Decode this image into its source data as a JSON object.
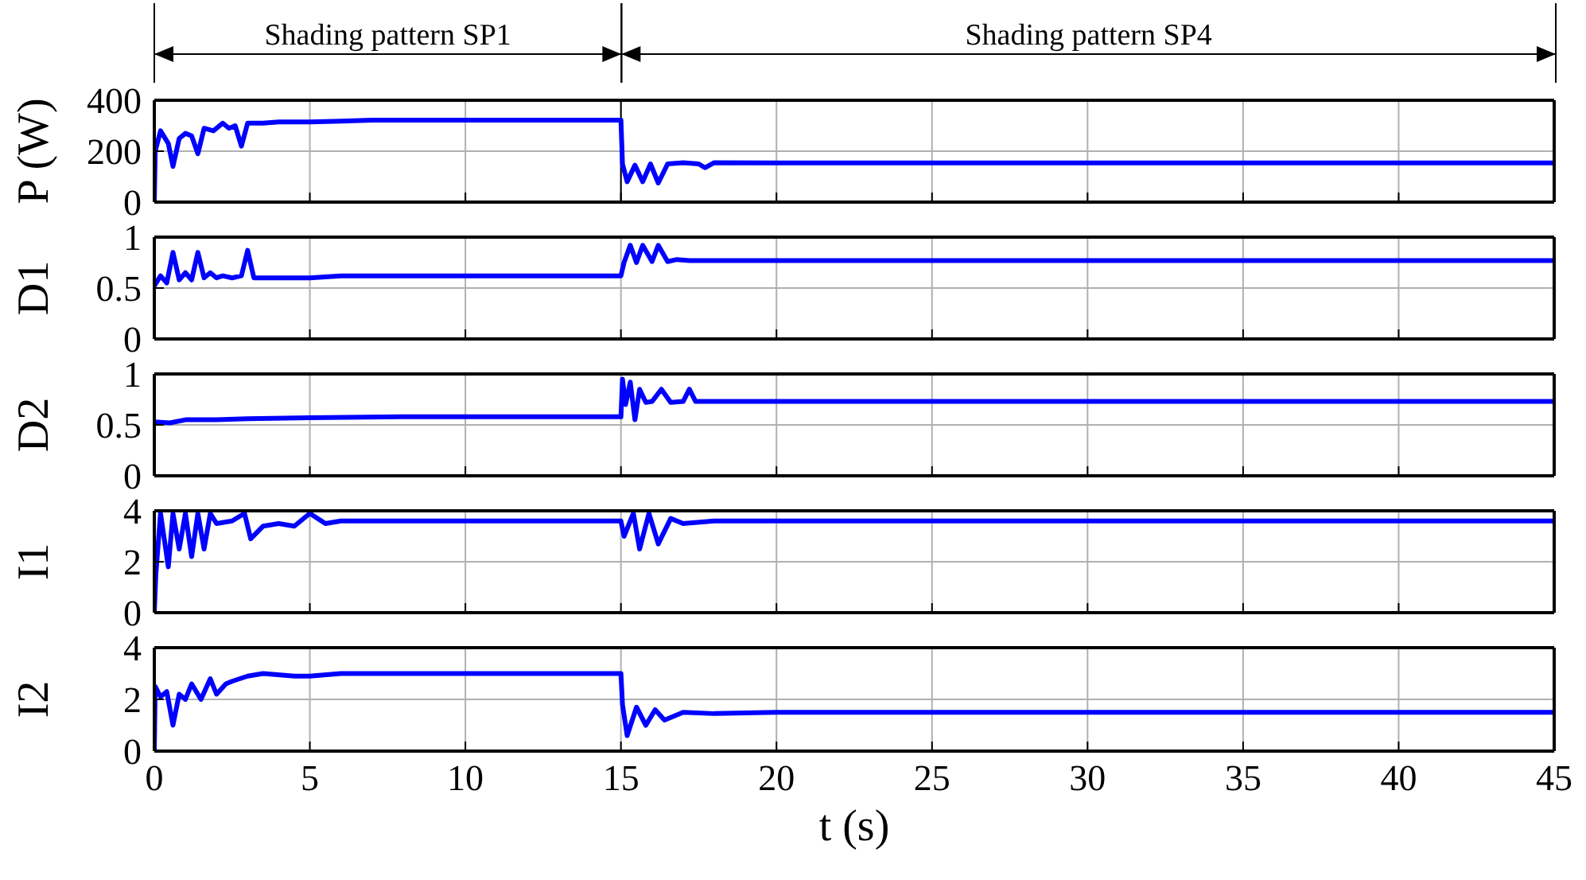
{
  "chart_data": [
    {
      "type": "line",
      "ylabel": "P (W)",
      "xlim": [
        0,
        45
      ],
      "xticks": [
        0,
        5,
        10,
        15,
        20,
        25,
        30,
        35,
        40,
        45
      ],
      "ylim": [
        0,
        400
      ],
      "yticks": [
        0,
        200,
        400
      ],
      "grid": true,
      "tick_labels": "y",
      "line_style": "solid",
      "annotations": [
        "Shading pattern SP1",
        "Shading pattern SP4"
      ],
      "ref_lines": [
        {
          "axis": "x",
          "value": 15
        }
      ],
      "series": [
        {
          "color": "#0000ff",
          "x": [
            0,
            0.03,
            0.2,
            0.45,
            0.6,
            0.8,
            1.0,
            1.2,
            1.4,
            1.6,
            1.9,
            2.2,
            2.4,
            2.6,
            2.8,
            3.0,
            3.5,
            4,
            5,
            6,
            7,
            15,
            15.05,
            15.2,
            15.45,
            15.7,
            15.95,
            16.2,
            16.5,
            17,
            17.5,
            17.7,
            18,
            20,
            45
          ],
          "values": [
            0,
            200,
            280,
            230,
            140,
            250,
            270,
            260,
            190,
            290,
            280,
            310,
            290,
            300,
            220,
            310,
            310,
            315,
            315,
            318,
            322,
            322,
            150,
            80,
            145,
            80,
            150,
            75,
            150,
            155,
            150,
            135,
            155,
            154,
            154
          ]
        }
      ]
    },
    {
      "type": "line",
      "ylabel": "D1",
      "xlim": [
        0,
        45
      ],
      "xticks": [
        0,
        5,
        10,
        15,
        20,
        25,
        30,
        35,
        40,
        45
      ],
      "ylim": [
        0,
        1
      ],
      "yticks": [
        0,
        0.5,
        1
      ],
      "grid": true,
      "tick_labels": "y",
      "line_style": "solid",
      "series": [
        {
          "color": "#0000ff",
          "x": [
            0,
            0.2,
            0.4,
            0.6,
            0.8,
            1.0,
            1.2,
            1.4,
            1.6,
            1.8,
            2.0,
            2.2,
            2.5,
            2.8,
            3.0,
            3.2,
            3.5,
            4,
            5,
            6,
            7,
            15,
            15.1,
            15.3,
            15.5,
            15.7,
            16.0,
            16.2,
            16.5,
            16.8,
            17.2,
            18,
            45
          ],
          "values": [
            0.52,
            0.62,
            0.55,
            0.85,
            0.58,
            0.65,
            0.58,
            0.85,
            0.6,
            0.65,
            0.6,
            0.62,
            0.6,
            0.62,
            0.87,
            0.6,
            0.6,
            0.6,
            0.6,
            0.62,
            0.62,
            0.62,
            0.75,
            0.92,
            0.75,
            0.92,
            0.76,
            0.92,
            0.76,
            0.78,
            0.77,
            0.77,
            0.77
          ]
        }
      ]
    },
    {
      "type": "line",
      "ylabel": "D2",
      "xlim": [
        0,
        45
      ],
      "xticks": [
        0,
        5,
        10,
        15,
        20,
        25,
        30,
        35,
        40,
        45
      ],
      "ylim": [
        0,
        1
      ],
      "yticks": [
        0,
        0.5,
        1
      ],
      "grid": true,
      "tick_labels": "y",
      "line_style": "solid",
      "series": [
        {
          "color": "#0000ff",
          "x": [
            0,
            0.5,
            1,
            2,
            3,
            5,
            8,
            15,
            15.05,
            15.15,
            15.3,
            15.45,
            15.6,
            15.8,
            16.0,
            16.3,
            16.6,
            17.0,
            17.2,
            17.4,
            18,
            45
          ],
          "values": [
            0.53,
            0.52,
            0.55,
            0.55,
            0.56,
            0.57,
            0.58,
            0.58,
            0.95,
            0.7,
            0.92,
            0.55,
            0.85,
            0.72,
            0.73,
            0.85,
            0.72,
            0.73,
            0.85,
            0.73,
            0.73,
            0.73
          ]
        }
      ]
    },
    {
      "type": "line",
      "ylabel": "I1",
      "xlim": [
        0,
        45
      ],
      "xticks": [
        0,
        5,
        10,
        15,
        20,
        25,
        30,
        35,
        40,
        45
      ],
      "ylim": [
        0,
        4
      ],
      "yticks": [
        0,
        2,
        4
      ],
      "grid": true,
      "tick_labels": "y",
      "line_style": "solid",
      "series": [
        {
          "color": "#0000ff",
          "x": [
            0,
            0.05,
            0.2,
            0.45,
            0.6,
            0.8,
            1.0,
            1.2,
            1.4,
            1.6,
            1.8,
            2.0,
            2.5,
            2.9,
            3.1,
            3.5,
            4,
            4.5,
            5,
            5.5,
            6,
            7,
            15,
            15.1,
            15.4,
            15.6,
            15.9,
            16.2,
            16.6,
            17,
            18,
            20,
            45
          ],
          "values": [
            0,
            1.5,
            3.9,
            1.8,
            3.9,
            2.5,
            3.9,
            2.2,
            3.9,
            2.5,
            3.9,
            3.5,
            3.6,
            3.9,
            2.9,
            3.4,
            3.5,
            3.4,
            3.9,
            3.5,
            3.6,
            3.6,
            3.6,
            3.0,
            3.9,
            2.5,
            3.9,
            2.7,
            3.7,
            3.5,
            3.6,
            3.6,
            3.6
          ]
        }
      ]
    },
    {
      "type": "line",
      "ylabel": "I2",
      "xlabel": "t (s)",
      "xlim": [
        0,
        45
      ],
      "xticks": [
        0,
        5,
        10,
        15,
        20,
        25,
        30,
        35,
        40,
        45
      ],
      "ylim": [
        0,
        4
      ],
      "yticks": [
        0,
        2,
        4
      ],
      "grid": true,
      "line_style": "solid",
      "series": [
        {
          "color": "#0000ff",
          "x": [
            0,
            0.03,
            0.2,
            0.4,
            0.6,
            0.8,
            1.0,
            1.2,
            1.5,
            1.8,
            2.0,
            2.3,
            2.5,
            3,
            3.5,
            4.5,
            5,
            6,
            8,
            15,
            15.05,
            15.2,
            15.5,
            15.8,
            16.1,
            16.4,
            17,
            18,
            20,
            45
          ],
          "values": [
            0,
            2.5,
            2.1,
            2.3,
            1.0,
            2.2,
            2.0,
            2.6,
            2.0,
            2.8,
            2.2,
            2.6,
            2.7,
            2.9,
            3.0,
            2.9,
            2.9,
            3.0,
            3.0,
            3.0,
            1.8,
            0.6,
            1.7,
            1.0,
            1.6,
            1.2,
            1.5,
            1.45,
            1.5,
            1.5
          ]
        }
      ]
    }
  ]
}
